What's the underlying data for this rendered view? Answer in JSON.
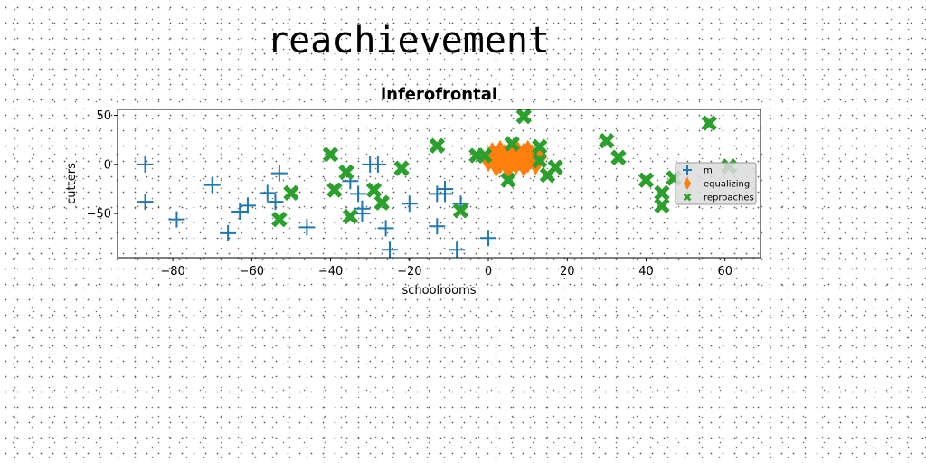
{
  "page_title": "reachievement",
  "chart_data": {
    "type": "scatter",
    "title": "inferofrontal",
    "xlabel": "schoolrooms",
    "ylabel": "cutters",
    "xlim": [
      -94,
      69
    ],
    "ylim": [
      -95,
      56
    ],
    "xticks": [
      -80,
      -60,
      -40,
      -20,
      0,
      20,
      40,
      60
    ],
    "yticks": [
      50,
      0,
      -50
    ],
    "xtick_labels": [
      "−80",
      "−60",
      "−40",
      "−20",
      "0",
      "20",
      "40",
      "60"
    ],
    "ytick_labels": [
      "50",
      "0",
      "−50"
    ],
    "grid": false,
    "legend_position": "center-right",
    "series": [
      {
        "name": "m",
        "marker": "plus",
        "color": "#1f77b4",
        "points": [
          [
            -87,
            0
          ],
          [
            -87,
            -38
          ],
          [
            -79,
            -56
          ],
          [
            -70,
            -21
          ],
          [
            -66,
            -70
          ],
          [
            -63,
            -48
          ],
          [
            -61,
            -42
          ],
          [
            -56,
            -29
          ],
          [
            -54,
            -38
          ],
          [
            -53,
            -9
          ],
          [
            -46,
            -64
          ],
          [
            -35,
            -17
          ],
          [
            -33,
            -30
          ],
          [
            -32,
            -45
          ],
          [
            -32,
            -50
          ],
          [
            -30,
            0
          ],
          [
            -28,
            0
          ],
          [
            -26,
            -65
          ],
          [
            -25,
            -87
          ],
          [
            -20,
            -40
          ],
          [
            -13,
            -30
          ],
          [
            -13,
            -63
          ],
          [
            -11,
            -25
          ],
          [
            -11,
            -30
          ],
          [
            -8,
            -87
          ],
          [
            -7,
            -40
          ],
          [
            0,
            -75
          ]
        ]
      },
      {
        "name": "equalizing",
        "marker": "thin_diamond",
        "color": "#ff7f0e",
        "points": [
          [
            0,
            5
          ],
          [
            1,
            10
          ],
          [
            2,
            0
          ],
          [
            2,
            7
          ],
          [
            3,
            12
          ],
          [
            3,
            3
          ],
          [
            4,
            8
          ],
          [
            5,
            -2
          ],
          [
            5,
            6
          ],
          [
            6,
            10
          ],
          [
            7,
            2
          ],
          [
            7,
            14
          ],
          [
            8,
            6
          ],
          [
            9,
            0
          ],
          [
            9,
            10
          ],
          [
            10,
            4
          ],
          [
            10,
            12
          ],
          [
            11,
            8
          ],
          [
            12,
            2
          ],
          [
            13,
            8
          ]
        ]
      },
      {
        "name": "reproaches",
        "marker": "filled_x",
        "color": "#2ca02c",
        "points": [
          [
            -50,
            -29
          ],
          [
            -53,
            -56
          ],
          [
            -40,
            10
          ],
          [
            -39,
            -26
          ],
          [
            -36,
            -8
          ],
          [
            -35,
            -53
          ],
          [
            -29,
            -26
          ],
          [
            -27,
            -39
          ],
          [
            -22,
            -4
          ],
          [
            -13,
            19
          ],
          [
            -7,
            -47
          ],
          [
            -3,
            9
          ],
          [
            -1,
            9
          ],
          [
            5,
            -16
          ],
          [
            6,
            21
          ],
          [
            9,
            49
          ],
          [
            13,
            18
          ],
          [
            13,
            4
          ],
          [
            15,
            -11
          ],
          [
            17,
            -3
          ],
          [
            30,
            24
          ],
          [
            33,
            7
          ],
          [
            40,
            -16
          ],
          [
            44,
            -29
          ],
          [
            44,
            -42
          ],
          [
            47,
            -14
          ],
          [
            56,
            42
          ],
          [
            61,
            -2
          ]
        ]
      }
    ]
  }
}
